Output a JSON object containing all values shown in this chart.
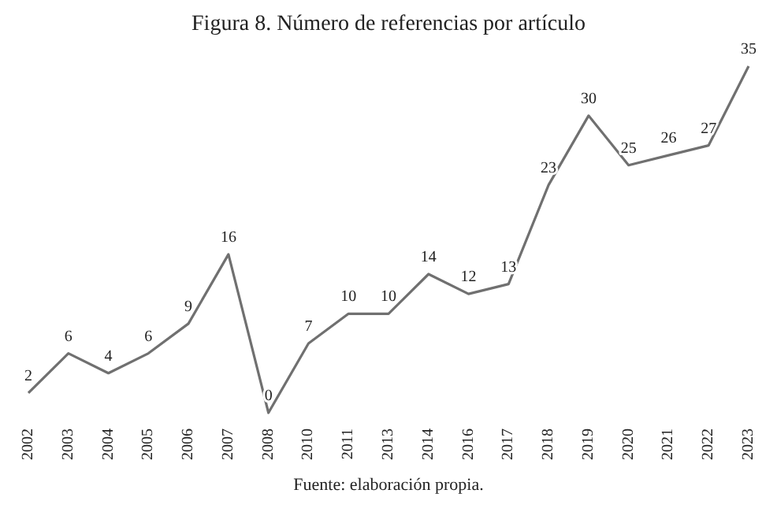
{
  "chart_data": {
    "type": "line",
    "title": "Figura 8. Número de referencias por artículo",
    "categories": [
      "2002",
      "2003",
      "2004",
      "2005",
      "2006",
      "2007",
      "2008",
      "2010",
      "2011",
      "2013",
      "2014",
      "2016",
      "2017",
      "2018",
      "2019",
      "2020",
      "2021",
      "2022",
      "2023"
    ],
    "series": [
      {
        "color": "#707070",
        "values": [
          2,
          6,
          4,
          6,
          9,
          16,
          0,
          7,
          10,
          10,
          14,
          12,
          13,
          23,
          30,
          25,
          26,
          27,
          35
        ]
      }
    ],
    "data_labels": true,
    "grid": false,
    "legend": false,
    "marker": "none",
    "line_style": "solid",
    "annotations": [
      "Fuente: elaboración propia."
    ]
  }
}
